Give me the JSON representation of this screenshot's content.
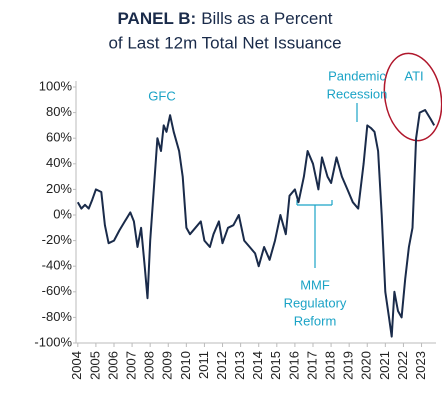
{
  "chart_data": {
    "type": "line",
    "panel": "PANEL B:",
    "title": [
      "Bills as a Percent",
      "of Last 12m Total Net Issuance"
    ],
    "annotations": [
      [
        "GFC"
      ],
      [
        "Pandemic",
        "Recession"
      ],
      [
        "ATI"
      ],
      [
        "MMF",
        "Regulatory",
        "Reform"
      ]
    ],
    "x": [
      2004.0,
      2004.2,
      2004.4,
      2004.6,
      2004.8,
      2005.0,
      2005.3,
      2005.5,
      2005.7,
      2006.0,
      2006.3,
      2006.6,
      2006.9,
      2007.1,
      2007.3,
      2007.5,
      2007.7,
      2007.85,
      2008.0,
      2008.2,
      2008.4,
      2008.6,
      2008.75,
      2008.9,
      2009.1,
      2009.3,
      2009.6,
      2009.8,
      2010.0,
      2010.2,
      2010.5,
      2010.8,
      2011.0,
      2011.3,
      2011.5,
      2011.8,
      2012.0,
      2012.3,
      2012.6,
      2012.9,
      2013.2,
      2013.5,
      2013.8,
      2014.0,
      2014.3,
      2014.6,
      2014.9,
      2015.2,
      2015.5,
      2015.7,
      2016.0,
      2016.2,
      2016.5,
      2016.7,
      2017.0,
      2017.3,
      2017.5,
      2017.8,
      2018.0,
      2018.3,
      2018.6,
      2018.9,
      2019.2,
      2019.5,
      2019.8,
      2020.0,
      2020.2,
      2020.4,
      2020.6,
      2020.8,
      2021.0,
      2021.2,
      2021.35,
      2021.5,
      2021.7,
      2021.9,
      2022.1,
      2022.3,
      2022.5,
      2022.7,
      2022.9,
      2023.2,
      2023.5,
      2023.7
    ],
    "series": [
      {
        "color": "#1a2b4a",
        "values": [
          10,
          5,
          8,
          5,
          12,
          20,
          18,
          -8,
          -22,
          -20,
          -12,
          -5,
          2,
          -5,
          -25,
          -10,
          -40,
          -65,
          -20,
          20,
          60,
          50,
          70,
          65,
          78,
          65,
          50,
          30,
          -10,
          -15,
          -10,
          -5,
          -20,
          -25,
          -15,
          -5,
          -22,
          -10,
          -8,
          0,
          -20,
          -25,
          -30,
          -40,
          -25,
          -35,
          -20,
          0,
          -15,
          15,
          20,
          10,
          30,
          50,
          40,
          20,
          45,
          30,
          25,
          45,
          30,
          20,
          10,
          5,
          40,
          70,
          68,
          65,
          50,
          0,
          -60,
          -80,
          -95,
          -60,
          -75,
          -80,
          -50,
          -25,
          -10,
          60,
          80,
          82,
          75,
          70
        ]
      }
    ],
    "xlim": [
      2003.9,
      2023.8
    ],
    "xticks": [
      2004,
      2005,
      2006,
      2007,
      2008,
      2009,
      2010,
      2011,
      2012,
      2013,
      2014,
      2015,
      2016,
      2017,
      2018,
      2019,
      2020,
      2021,
      2022,
      2023
    ],
    "ylim": [
      -100,
      100
    ],
    "yticks": [
      {
        "value": -100,
        "label": "-100%"
      },
      {
        "value": -80,
        "label": "-80%"
      },
      {
        "value": -60,
        "label": "-60%"
      },
      {
        "value": -40,
        "label": "-40%"
      },
      {
        "value": -20,
        "label": "-20%"
      },
      {
        "value": 0,
        "label": "0%"
      },
      {
        "value": 20,
        "label": "20%"
      },
      {
        "value": 40,
        "label": "40%"
      },
      {
        "value": 60,
        "label": "60%"
      },
      {
        "value": 80,
        "label": "80%"
      },
      {
        "value": 100,
        "label": "100%"
      }
    ],
    "grid": false
  }
}
